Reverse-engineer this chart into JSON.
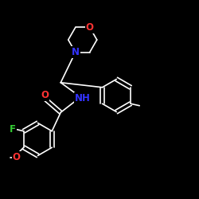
{
  "background": "#000000",
  "bond_color": "#ffffff",
  "atom_colors": {
    "O": "#ff3333",
    "N": "#3333ff",
    "F": "#33cc33",
    "C": "#ffffff"
  },
  "bond_width": 1.2,
  "font_size": 8.5
}
